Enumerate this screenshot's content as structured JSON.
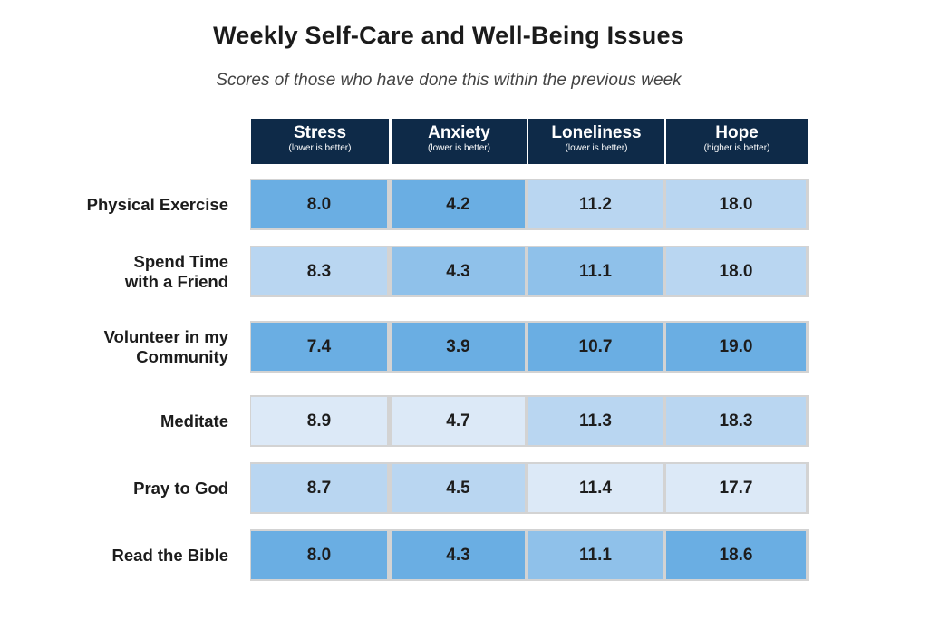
{
  "title": "Weekly Self-Care and Well-Being Issues",
  "subtitle": "Scores of those who have done this within the previous week",
  "colors": {
    "header_bg": "#0e2a48",
    "shade_dark": "#6aaee3",
    "shade_medium": "#8fc1ea",
    "shade_light": "#b9d6f1",
    "shade_lightest": "#dce9f7",
    "row_border": "#d3d3d3"
  },
  "chart_data": {
    "type": "table",
    "columns": [
      {
        "name": "Stress",
        "note": "(lower is better)"
      },
      {
        "name": "Anxiety",
        "note": "(lower is better)"
      },
      {
        "name": "Loneliness",
        "note": "(lower is better)"
      },
      {
        "name": "Hope",
        "note": "(higher is better)"
      }
    ],
    "rows": [
      {
        "label": [
          "Physical Exercise"
        ],
        "values": [
          "8.0",
          "4.2",
          "11.2",
          "18.0"
        ],
        "shades": [
          "dark",
          "dark",
          "light",
          "light"
        ]
      },
      {
        "label": [
          "Spend Time",
          "with a Friend"
        ],
        "values": [
          "8.3",
          "4.3",
          "11.1",
          "18.0"
        ],
        "shades": [
          "light",
          "medium",
          "medium",
          "light"
        ]
      },
      {
        "label": [
          "Volunteer in my",
          "Community"
        ],
        "values": [
          "7.4",
          "3.9",
          "10.7",
          "19.0"
        ],
        "shades": [
          "dark",
          "dark",
          "dark",
          "dark"
        ]
      },
      {
        "label": [
          "Meditate"
        ],
        "values": [
          "8.9",
          "4.7",
          "11.3",
          "18.3"
        ],
        "shades": [
          "lightest",
          "lightest",
          "light",
          "light"
        ]
      },
      {
        "label": [
          "Pray to God"
        ],
        "values": [
          "8.7",
          "4.5",
          "11.4",
          "17.7"
        ],
        "shades": [
          "light",
          "light",
          "lightest",
          "lightest"
        ]
      },
      {
        "label": [
          "Read the Bible"
        ],
        "values": [
          "8.0",
          "4.3",
          "11.1",
          "18.6"
        ],
        "shades": [
          "dark",
          "dark",
          "medium",
          "dark"
        ]
      }
    ]
  }
}
